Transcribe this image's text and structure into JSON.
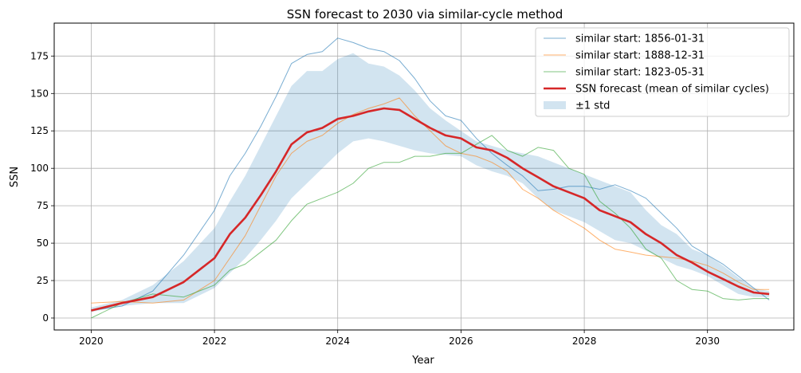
{
  "chart_data": {
    "type": "line",
    "title": "SSN forecast to 2030 via similar-cycle method",
    "xlabel": "Year",
    "ylabel": "SSN",
    "xlim": [
      2019.4,
      2031.4
    ],
    "ylim": [
      -8,
      197
    ],
    "xticks": [
      2020,
      2022,
      2024,
      2026,
      2028,
      2030
    ],
    "yticks": [
      0,
      25,
      50,
      75,
      100,
      125,
      150,
      175
    ],
    "grid": true,
    "legend_position": "top-right",
    "series": [
      {
        "name": "similar start: 1856-01-31",
        "color": "#1f77b4",
        "x": [
          2020.0,
          2020.5,
          2021.0,
          2021.5,
          2022.0,
          2022.25,
          2022.5,
          2022.75,
          2023.0,
          2023.25,
          2023.5,
          2023.75,
          2024.0,
          2024.25,
          2024.5,
          2024.75,
          2025.0,
          2025.25,
          2025.5,
          2025.75,
          2026.0,
          2026.25,
          2026.5,
          2026.75,
          2027.0,
          2027.25,
          2027.5,
          2027.75,
          2028.0,
          2028.25,
          2028.5,
          2028.75,
          2029.0,
          2029.25,
          2029.5,
          2029.75,
          2030.0,
          2030.25,
          2030.5,
          2030.75,
          2031.0
        ],
        "y": [
          5,
          8,
          18,
          42,
          72,
          95,
          110,
          128,
          148,
          170,
          176,
          178,
          187,
          184,
          180,
          178,
          172,
          160,
          145,
          135,
          132,
          120,
          110,
          102,
          95,
          85,
          86,
          88,
          88,
          86,
          89,
          85,
          80,
          70,
          60,
          48,
          42,
          36,
          28,
          20,
          12
        ]
      },
      {
        "name": "similar start: 1888-12-31",
        "color": "#ff7f0e",
        "x": [
          2020.0,
          2020.5,
          2021.0,
          2021.5,
          2022.0,
          2022.25,
          2022.5,
          2022.75,
          2023.0,
          2023.25,
          2023.5,
          2023.75,
          2024.0,
          2024.25,
          2024.5,
          2024.75,
          2025.0,
          2025.25,
          2025.5,
          2025.75,
          2026.0,
          2026.25,
          2026.5,
          2026.75,
          2027.0,
          2027.25,
          2027.5,
          2027.75,
          2028.0,
          2028.25,
          2028.5,
          2028.75,
          2029.0,
          2029.25,
          2029.5,
          2029.75,
          2030.0,
          2030.25,
          2030.5,
          2030.75,
          2031.0
        ],
        "y": [
          10,
          11,
          10,
          12,
          25,
          40,
          55,
          75,
          95,
          110,
          118,
          122,
          130,
          136,
          140,
          143,
          147,
          135,
          125,
          115,
          110,
          108,
          104,
          98,
          86,
          80,
          72,
          66,
          60,
          52,
          46,
          44,
          42,
          41,
          40,
          38,
          35,
          30,
          24,
          19,
          19
        ]
      },
      {
        "name": "similar start: 1823-05-31",
        "color": "#2ca02c",
        "x": [
          2020.0,
          2020.5,
          2021.0,
          2021.5,
          2022.0,
          2022.25,
          2022.5,
          2022.75,
          2023.0,
          2023.25,
          2023.5,
          2023.75,
          2024.0,
          2024.25,
          2024.5,
          2024.75,
          2025.0,
          2025.25,
          2025.5,
          2025.75,
          2026.0,
          2026.25,
          2026.5,
          2026.75,
          2027.0,
          2027.25,
          2027.5,
          2027.75,
          2028.0,
          2028.25,
          2028.5,
          2028.75,
          2029.0,
          2029.25,
          2029.5,
          2029.75,
          2030.0,
          2030.25,
          2030.5,
          2030.75,
          2031.0
        ],
        "y": [
          0,
          10,
          16,
          14,
          22,
          32,
          36,
          44,
          52,
          65,
          76,
          80,
          84,
          90,
          100,
          104,
          104,
          108,
          108,
          110,
          110,
          116,
          122,
          112,
          108,
          114,
          112,
          100,
          96,
          78,
          70,
          60,
          46,
          40,
          25,
          19,
          18,
          13,
          12,
          13,
          13
        ]
      },
      {
        "name": "SSN forecast (mean of similar cycles)",
        "color": "#d62728",
        "x": [
          2020.0,
          2020.5,
          2021.0,
          2021.5,
          2022.0,
          2022.25,
          2022.5,
          2022.75,
          2023.0,
          2023.25,
          2023.5,
          2023.75,
          2024.0,
          2024.25,
          2024.5,
          2024.75,
          2025.0,
          2025.25,
          2025.5,
          2025.75,
          2026.0,
          2026.25,
          2026.5,
          2026.75,
          2027.0,
          2027.25,
          2027.5,
          2027.75,
          2028.0,
          2028.25,
          2028.5,
          2028.75,
          2029.0,
          2029.25,
          2029.5,
          2029.75,
          2030.0,
          2030.25,
          2030.5,
          2030.75,
          2031.0
        ],
        "y": [
          5,
          10,
          14,
          24,
          40,
          56,
          67,
          82,
          98,
          116,
          124,
          127,
          133,
          135,
          138,
          140,
          139,
          133,
          127,
          122,
          120,
          114,
          112,
          107,
          100,
          94,
          88,
          84,
          80,
          72,
          68,
          64,
          56,
          50,
          42,
          37,
          31,
          26,
          21,
          17,
          16
        ]
      }
    ],
    "band": {
      "name": "±1 std",
      "color": "#1f77b4",
      "opacity": 0.2,
      "x": [
        2020.0,
        2020.5,
        2021.0,
        2021.5,
        2022.0,
        2022.25,
        2022.5,
        2022.75,
        2023.0,
        2023.25,
        2023.5,
        2023.75,
        2024.0,
        2024.25,
        2024.5,
        2024.75,
        2025.0,
        2025.25,
        2025.5,
        2025.75,
        2026.0,
        2026.25,
        2026.5,
        2026.75,
        2027.0,
        2027.25,
        2027.5,
        2027.75,
        2028.0,
        2028.25,
        2028.5,
        2028.75,
        2029.0,
        2029.25,
        2029.5,
        2029.75,
        2030.0,
        2030.25,
        2030.5,
        2030.75,
        2031.0
      ],
      "lower": [
        4,
        8,
        10,
        10,
        20,
        30,
        40,
        52,
        65,
        80,
        90,
        100,
        110,
        118,
        120,
        118,
        115,
        112,
        110,
        109,
        108,
        102,
        98,
        95,
        90,
        80,
        72,
        68,
        64,
        58,
        52,
        50,
        45,
        40,
        35,
        32,
        28,
        22,
        16,
        14,
        14
      ],
      "upper": [
        7,
        12,
        22,
        38,
        60,
        78,
        95,
        115,
        135,
        155,
        165,
        165,
        173,
        177,
        170,
        168,
        162,
        152,
        140,
        132,
        125,
        118,
        115,
        112,
        110,
        108,
        104,
        100,
        96,
        92,
        88,
        84,
        72,
        62,
        56,
        46,
        42,
        35,
        27,
        20,
        18
      ]
    }
  }
}
